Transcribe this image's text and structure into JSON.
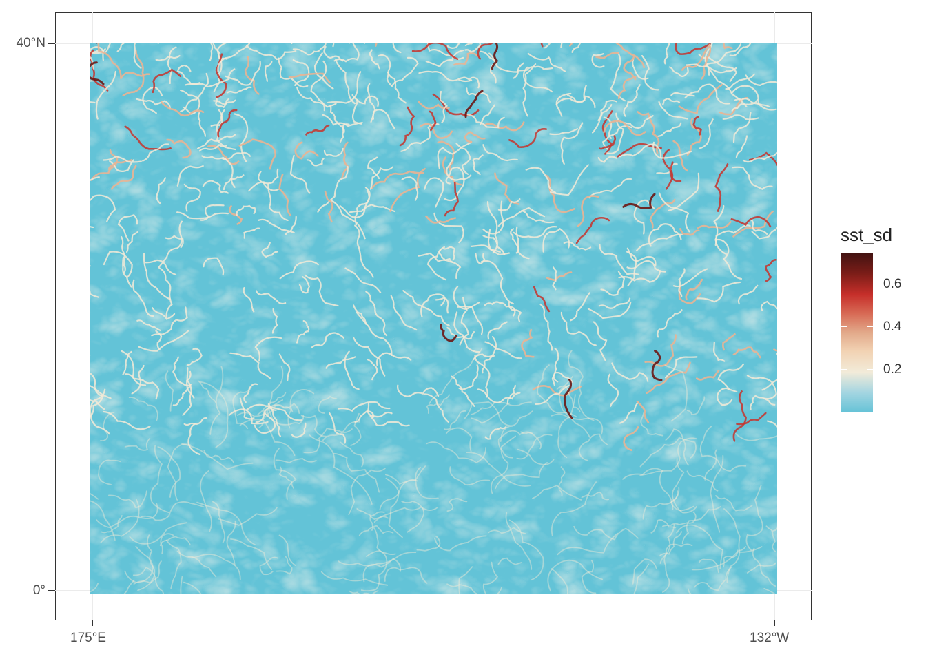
{
  "map": {
    "y_axis": {
      "labels": [
        "40°N",
        "0°"
      ]
    },
    "x_axis": {
      "labels": [
        "175°E",
        "132°W"
      ]
    },
    "extent": {
      "lon_min": 175,
      "lon_max": -132,
      "lat_min": 0,
      "lat_max": 40
    }
  },
  "legend": {
    "title": "sst_sd",
    "ticks": [
      "0.6",
      "0.4",
      "0.2"
    ],
    "range": [
      0,
      0.74
    ],
    "palette": [
      "#67c3d7",
      "#f2ebd9",
      "#e2a98a",
      "#c62f2a",
      "#431312"
    ]
  },
  "colors": {
    "background_sea": "#63c3d7",
    "filament_light": "#f3ead7",
    "filament_mid": "#e9b493",
    "filament_high": "#c8322c",
    "filament_max": "#6b1714"
  }
}
